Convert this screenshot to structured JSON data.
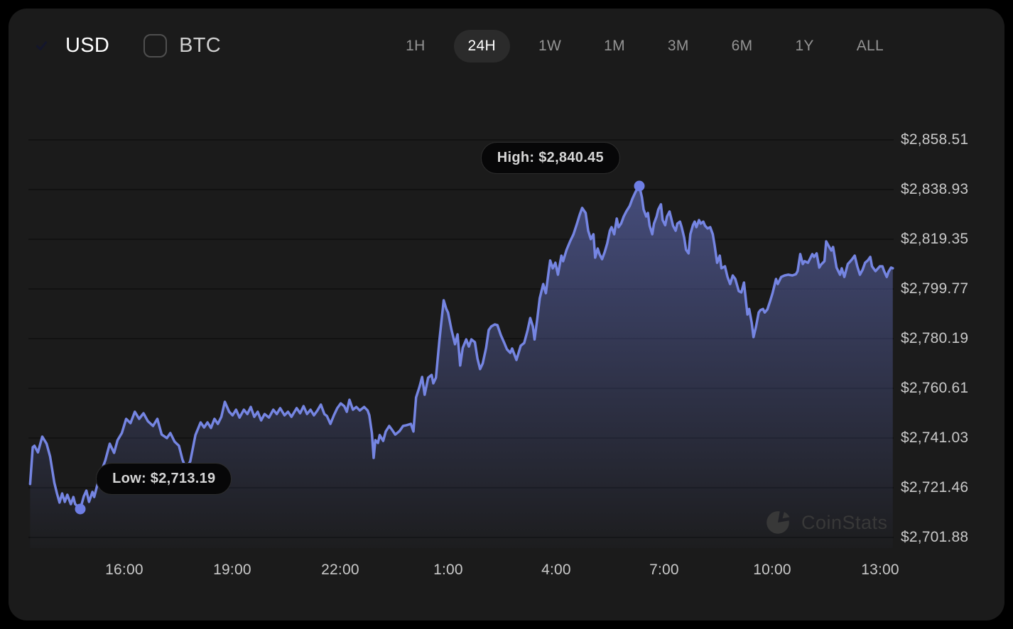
{
  "header": {
    "currency_toggles": [
      {
        "label": "USD",
        "checked": true
      },
      {
        "label": "BTC",
        "checked": false
      }
    ],
    "ranges": [
      "1H",
      "24H",
      "1W",
      "1M",
      "3M",
      "6M",
      "1Y",
      "ALL"
    ],
    "selected_range": "24H"
  },
  "watermark": {
    "text": "CoinStats"
  },
  "colors": {
    "accent_line": "#7585e2",
    "accent_dot": "#6e7ee4",
    "checkbox_blue": "#6b7be8",
    "fill_top": "rgba(108,122,212,0.52)",
    "fill_bottom": "rgba(108,122,212,0.02)",
    "card_bg": "#1b1b1b",
    "grid": "#121212",
    "selected_pill_bg": "#2b2b2b",
    "muted_text": "#949494",
    "axis_text": "#c9c9c9"
  },
  "chart_data": {
    "type": "area",
    "unit": "USD",
    "legend": "none",
    "grid": "horizontal",
    "y_ticks": {
      "labels": [
        "$2,858.51",
        "$2,838.93",
        "$2,819.35",
        "$2,799.77",
        "$2,780.19",
        "$2,760.61",
        "$2,741.03",
        "$2,721.46",
        "$2,701.88"
      ],
      "values": [
        2858.51,
        2838.93,
        2819.35,
        2799.77,
        2780.19,
        2760.61,
        2741.03,
        2721.46,
        2701.88
      ]
    },
    "x_ticks": {
      "labels": [
        "16:00",
        "19:00",
        "22:00",
        "1:00",
        "4:00",
        "7:00",
        "10:00",
        "13:00"
      ],
      "fracs": [
        0.1108,
        0.2356,
        0.3604,
        0.4852,
        0.61,
        0.7348,
        0.8596,
        0.9844
      ]
    },
    "high": {
      "label": "High: $2,840.45",
      "price": 2840.45,
      "frac": 0.706
    },
    "low": {
      "label": "Low: $2,713.19",
      "price": 2713.19,
      "frac": 0.06
    },
    "points": [
      [
        0.002,
        2722.9
      ],
      [
        0.005,
        2737.4
      ],
      [
        0.007,
        2738.0
      ],
      [
        0.011,
        2735.4
      ],
      [
        0.016,
        2741.6
      ],
      [
        0.021,
        2738.8
      ],
      [
        0.025,
        2733.8
      ],
      [
        0.03,
        2723.4
      ],
      [
        0.033,
        2719.2
      ],
      [
        0.036,
        2715.6
      ],
      [
        0.039,
        2719.2
      ],
      [
        0.042,
        2715.9
      ],
      [
        0.045,
        2718.7
      ],
      [
        0.049,
        2715.0
      ],
      [
        0.052,
        2717.8
      ],
      [
        0.054,
        2715.0
      ],
      [
        0.06,
        2713.19
      ],
      [
        0.064,
        2718.1
      ],
      [
        0.067,
        2720.3
      ],
      [
        0.07,
        2715.9
      ],
      [
        0.074,
        2719.8
      ],
      [
        0.076,
        2717.8
      ],
      [
        0.082,
        2725.7
      ],
      [
        0.089,
        2732.4
      ],
      [
        0.094,
        2738.8
      ],
      [
        0.099,
        2735.2
      ],
      [
        0.103,
        2740.2
      ],
      [
        0.108,
        2743.0
      ],
      [
        0.113,
        2748.6
      ],
      [
        0.118,
        2746.9
      ],
      [
        0.123,
        2751.4
      ],
      [
        0.128,
        2748.6
      ],
      [
        0.133,
        2750.8
      ],
      [
        0.138,
        2747.7
      ],
      [
        0.144,
        2745.8
      ],
      [
        0.149,
        2748.6
      ],
      [
        0.154,
        2742.4
      ],
      [
        0.16,
        2741.0
      ],
      [
        0.164,
        2743.0
      ],
      [
        0.169,
        2739.6
      ],
      [
        0.174,
        2738.0
      ],
      [
        0.178,
        2732.6
      ],
      [
        0.182,
        2729.0
      ],
      [
        0.187,
        2731.8
      ],
      [
        0.193,
        2742.2
      ],
      [
        0.199,
        2747.2
      ],
      [
        0.203,
        2745.2
      ],
      [
        0.207,
        2747.2
      ],
      [
        0.211,
        2745.0
      ],
      [
        0.215,
        2748.6
      ],
      [
        0.219,
        2746.6
      ],
      [
        0.223,
        2749.4
      ],
      [
        0.227,
        2755.3
      ],
      [
        0.232,
        2751.4
      ],
      [
        0.236,
        2750.0
      ],
      [
        0.24,
        2752.2
      ],
      [
        0.244,
        2749.1
      ],
      [
        0.249,
        2752.2
      ],
      [
        0.253,
        2750.5
      ],
      [
        0.257,
        2753.3
      ],
      [
        0.261,
        2749.4
      ],
      [
        0.265,
        2751.4
      ],
      [
        0.269,
        2748.0
      ],
      [
        0.273,
        2750.5
      ],
      [
        0.278,
        2749.1
      ],
      [
        0.283,
        2752.2
      ],
      [
        0.287,
        2750.5
      ],
      [
        0.291,
        2752.8
      ],
      [
        0.296,
        2750.0
      ],
      [
        0.3,
        2751.4
      ],
      [
        0.304,
        2749.4
      ],
      [
        0.31,
        2752.8
      ],
      [
        0.314,
        2750.8
      ],
      [
        0.318,
        2753.6
      ],
      [
        0.322,
        2750.5
      ],
      [
        0.326,
        2752.2
      ],
      [
        0.33,
        2750.0
      ],
      [
        0.334,
        2751.9
      ],
      [
        0.338,
        2754.2
      ],
      [
        0.342,
        2750.5
      ],
      [
        0.345,
        2749.7
      ],
      [
        0.349,
        2746.6
      ],
      [
        0.353,
        2750.0
      ],
      [
        0.357,
        2752.8
      ],
      [
        0.361,
        2754.7
      ],
      [
        0.365,
        2753.6
      ],
      [
        0.368,
        2751.4
      ],
      [
        0.371,
        2756.1
      ],
      [
        0.375,
        2752.2
      ],
      [
        0.379,
        2753.3
      ],
      [
        0.383,
        2751.9
      ],
      [
        0.388,
        2753.3
      ],
      [
        0.392,
        2751.9
      ],
      [
        0.394,
        2750.0
      ],
      [
        0.397,
        2743.0
      ],
      [
        0.399,
        2733.2
      ],
      [
        0.401,
        2740.2
      ],
      [
        0.404,
        2739.1
      ],
      [
        0.406,
        2742.2
      ],
      [
        0.41,
        2739.9
      ],
      [
        0.413,
        2743.6
      ],
      [
        0.417,
        2745.8
      ],
      [
        0.42,
        2744.4
      ],
      [
        0.424,
        2742.4
      ],
      [
        0.429,
        2743.8
      ],
      [
        0.433,
        2745.8
      ],
      [
        0.437,
        2746.1
      ],
      [
        0.442,
        2746.6
      ],
      [
        0.445,
        2743.6
      ],
      [
        0.448,
        2757.0
      ],
      [
        0.452,
        2761.2
      ],
      [
        0.455,
        2765.1
      ],
      [
        0.458,
        2758.1
      ],
      [
        0.462,
        2764.8
      ],
      [
        0.466,
        2765.9
      ],
      [
        0.468,
        2762.6
      ],
      [
        0.471,
        2764.8
      ],
      [
        0.475,
        2779.4
      ],
      [
        0.478,
        2789.1
      ],
      [
        0.48,
        2795.3
      ],
      [
        0.483,
        2791.9
      ],
      [
        0.485,
        2790.5
      ],
      [
        0.489,
        2783.6
      ],
      [
        0.493,
        2778.0
      ],
      [
        0.496,
        2781.9
      ],
      [
        0.499,
        2769.6
      ],
      [
        0.502,
        2776.6
      ],
      [
        0.506,
        2779.9
      ],
      [
        0.509,
        2777.1
      ],
      [
        0.512,
        2779.9
      ],
      [
        0.516,
        2778.8
      ],
      [
        0.519,
        2772.4
      ],
      [
        0.522,
        2768.2
      ],
      [
        0.525,
        2770.4
      ],
      [
        0.529,
        2776.6
      ],
      [
        0.532,
        2783.6
      ],
      [
        0.535,
        2785.0
      ],
      [
        0.539,
        2785.8
      ],
      [
        0.542,
        2785.5
      ],
      [
        0.546,
        2781.6
      ],
      [
        0.55,
        2778.5
      ],
      [
        0.553,
        2776.0
      ],
      [
        0.557,
        2774.6
      ],
      [
        0.559,
        2776.3
      ],
      [
        0.564,
        2771.8
      ],
      [
        0.569,
        2777.4
      ],
      [
        0.573,
        2778.5
      ],
      [
        0.577,
        2783.6
      ],
      [
        0.58,
        2788.3
      ],
      [
        0.583,
        2785.0
      ],
      [
        0.585,
        2779.9
      ],
      [
        0.588,
        2787.7
      ],
      [
        0.591,
        2796.1
      ],
      [
        0.595,
        2801.7
      ],
      [
        0.598,
        2798.1
      ],
      [
        0.601,
        2805.9
      ],
      [
        0.603,
        2811.0
      ],
      [
        0.606,
        2807.9
      ],
      [
        0.609,
        2810.1
      ],
      [
        0.612,
        2805.4
      ],
      [
        0.616,
        2812.9
      ],
      [
        0.618,
        2810.7
      ],
      [
        0.622,
        2815.2
      ],
      [
        0.626,
        2818.5
      ],
      [
        0.63,
        2821.3
      ],
      [
        0.634,
        2825.5
      ],
      [
        0.637,
        2828.9
      ],
      [
        0.64,
        2831.7
      ],
      [
        0.644,
        2829.7
      ],
      [
        0.647,
        2822.7
      ],
      [
        0.65,
        2819.4
      ],
      [
        0.653,
        2821.3
      ],
      [
        0.655,
        2812.1
      ],
      [
        0.658,
        2815.7
      ],
      [
        0.66,
        2813.5
      ],
      [
        0.663,
        2811.5
      ],
      [
        0.666,
        2814.3
      ],
      [
        0.669,
        2817.7
      ],
      [
        0.672,
        2822.7
      ],
      [
        0.674,
        2824.1
      ],
      [
        0.677,
        2821.3
      ],
      [
        0.68,
        2827.5
      ],
      [
        0.682,
        2824.1
      ],
      [
        0.685,
        2825.5
      ],
      [
        0.688,
        2828.3
      ],
      [
        0.691,
        2830.3
      ],
      [
        0.695,
        2832.5
      ],
      [
        0.698,
        2835.3
      ],
      [
        0.701,
        2837.5
      ],
      [
        0.704,
        2839.5
      ],
      [
        0.706,
        2840.45
      ],
      [
        0.709,
        2835.9
      ],
      [
        0.711,
        2831.1
      ],
      [
        0.714,
        2828.3
      ],
      [
        0.716,
        2829.7
      ],
      [
        0.718,
        2824.7
      ],
      [
        0.721,
        2821.3
      ],
      [
        0.723,
        2825.5
      ],
      [
        0.726,
        2828.3
      ],
      [
        0.728,
        2831.1
      ],
      [
        0.731,
        2833.1
      ],
      [
        0.733,
        2826.9
      ],
      [
        0.736,
        2824.9
      ],
      [
        0.738,
        2828.3
      ],
      [
        0.741,
        2830.3
      ],
      [
        0.743,
        2827.5
      ],
      [
        0.745,
        2824.7
      ],
      [
        0.748,
        2822.7
      ],
      [
        0.75,
        2825.5
      ],
      [
        0.753,
        2826.3
      ],
      [
        0.755,
        2824.1
      ],
      [
        0.758,
        2819.9
      ],
      [
        0.76,
        2815.2
      ],
      [
        0.763,
        2813.8
      ],
      [
        0.765,
        2821.3
      ],
      [
        0.768,
        2824.9
      ],
      [
        0.77,
        2826.3
      ],
      [
        0.772,
        2824.1
      ],
      [
        0.775,
        2826.9
      ],
      [
        0.777,
        2825.5
      ],
      [
        0.78,
        2826.3
      ],
      [
        0.782,
        2824.7
      ],
      [
        0.785,
        2823.6
      ],
      [
        0.788,
        2824.1
      ],
      [
        0.791,
        2821.3
      ],
      [
        0.793,
        2817.1
      ],
      [
        0.796,
        2810.1
      ],
      [
        0.799,
        2812.9
      ],
      [
        0.801,
        2807.9
      ],
      [
        0.805,
        2808.7
      ],
      [
        0.808,
        2804.5
      ],
      [
        0.811,
        2801.7
      ],
      [
        0.814,
        2805.1
      ],
      [
        0.817,
        2803.7
      ],
      [
        0.821,
        2798.9
      ],
      [
        0.824,
        2798.4
      ],
      [
        0.827,
        2802.3
      ],
      [
        0.831,
        2789.7
      ],
      [
        0.833,
        2791.9
      ],
      [
        0.836,
        2786.4
      ],
      [
        0.838,
        2780.8
      ],
      [
        0.841,
        2785.0
      ],
      [
        0.844,
        2790.5
      ],
      [
        0.846,
        2791.4
      ],
      [
        0.849,
        2791.9
      ],
      [
        0.851,
        2790.5
      ],
      [
        0.854,
        2791.7
      ],
      [
        0.857,
        2794.7
      ],
      [
        0.86,
        2798.1
      ],
      [
        0.864,
        2803.7
      ],
      [
        0.866,
        2801.7
      ],
      [
        0.87,
        2804.5
      ],
      [
        0.874,
        2805.1
      ],
      [
        0.878,
        2805.4
      ],
      [
        0.883,
        2805.1
      ],
      [
        0.887,
        2805.6
      ],
      [
        0.889,
        2806.8
      ],
      [
        0.892,
        2813.5
      ],
      [
        0.895,
        2809.6
      ],
      [
        0.897,
        2810.7
      ],
      [
        0.901,
        2810.1
      ],
      [
        0.903,
        2811.5
      ],
      [
        0.906,
        2813.5
      ],
      [
        0.908,
        2812.4
      ],
      [
        0.911,
        2813.8
      ],
      [
        0.914,
        2808.2
      ],
      [
        0.916,
        2809.3
      ],
      [
        0.92,
        2810.7
      ],
      [
        0.922,
        2818.5
      ],
      [
        0.925,
        2816.6
      ],
      [
        0.928,
        2814.9
      ],
      [
        0.93,
        2816.3
      ],
      [
        0.934,
        2808.2
      ],
      [
        0.938,
        2805.4
      ],
      [
        0.94,
        2807.9
      ],
      [
        0.943,
        2804.5
      ],
      [
        0.947,
        2809.6
      ],
      [
        0.95,
        2810.7
      ],
      [
        0.952,
        2811.5
      ],
      [
        0.955,
        2812.9
      ],
      [
        0.958,
        2808.7
      ],
      [
        0.961,
        2805.4
      ],
      [
        0.964,
        2807.3
      ],
      [
        0.967,
        2810.1
      ],
      [
        0.97,
        2811.0
      ],
      [
        0.973,
        2812.4
      ],
      [
        0.975,
        2808.7
      ],
      [
        0.979,
        2806.8
      ],
      [
        0.982,
        2807.9
      ],
      [
        0.984,
        2808.7
      ],
      [
        0.987,
        2808.7
      ],
      [
        0.989,
        2806.8
      ],
      [
        0.992,
        2804.5
      ],
      [
        0.994,
        2806.5
      ],
      [
        0.997,
        2808.2
      ],
      [
        0.999,
        2807.9
      ]
    ]
  }
}
